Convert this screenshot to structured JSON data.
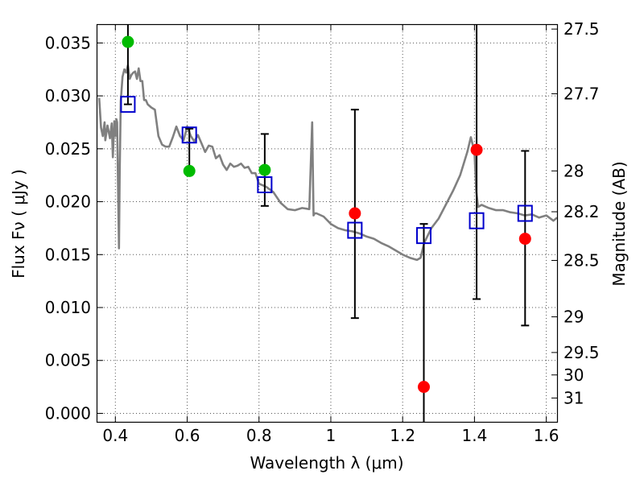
{
  "chart_data": {
    "type": "scatter",
    "xlabel": "Wavelength  λ (μm)",
    "ylabel": "Flux  Fν  ( μJy )",
    "ylabel_right": "Magnitude (AB)",
    "xlim": [
      0.35,
      1.63
    ],
    "ylim": [
      -0.0008,
      0.0367
    ],
    "grid": true,
    "x_ticks": [
      {
        "value": 0.4,
        "label": "0.4"
      },
      {
        "value": 0.6,
        "label": "0.6"
      },
      {
        "value": 0.8,
        "label": "0.8"
      },
      {
        "value": 1.0,
        "label": "1"
      },
      {
        "value": 1.2,
        "label": "1.2"
      },
      {
        "value": 1.4,
        "label": "1.4"
      },
      {
        "value": 1.6,
        "label": "1.6"
      }
    ],
    "y_ticks": [
      {
        "value": 0.0,
        "label": "0.000"
      },
      {
        "value": 0.005,
        "label": "0.005"
      },
      {
        "value": 0.01,
        "label": "0.010"
      },
      {
        "value": 0.015,
        "label": "0.015"
      },
      {
        "value": 0.02,
        "label": "0.020"
      },
      {
        "value": 0.025,
        "label": "0.025"
      },
      {
        "value": 0.03,
        "label": "0.030"
      },
      {
        "value": 0.035,
        "label": "0.035"
      }
    ],
    "right_ticks": [
      {
        "label": "27.5",
        "flux": 0.03631
      },
      {
        "label": "27.7",
        "flux": 0.0302
      },
      {
        "label": "28",
        "flux": 0.02291
      },
      {
        "label": "28.2",
        "flux": 0.01905
      },
      {
        "label": "28.5",
        "flux": 0.01445
      },
      {
        "label": "29",
        "flux": 0.00912
      },
      {
        "label": "29.5",
        "flux": 0.00575
      },
      {
        "label": "30",
        "flux": 0.00363
      },
      {
        "label": "31",
        "flux": 0.00145
      }
    ],
    "series": [
      {
        "kind": "model_sed_line",
        "color": "#808080",
        "x": [
          0.355,
          0.36,
          0.365,
          0.37,
          0.372,
          0.378,
          0.385,
          0.39,
          0.393,
          0.397,
          0.4,
          0.403,
          0.405,
          0.408,
          0.41,
          0.412,
          0.415,
          0.42,
          0.425,
          0.43,
          0.435,
          0.44,
          0.445,
          0.45,
          0.455,
          0.46,
          0.465,
          0.47,
          0.475,
          0.48,
          0.485,
          0.49,
          0.5,
          0.51,
          0.52,
          0.53,
          0.54,
          0.55,
          0.56,
          0.57,
          0.58,
          0.59,
          0.6,
          0.61,
          0.62,
          0.63,
          0.64,
          0.65,
          0.66,
          0.67,
          0.68,
          0.69,
          0.7,
          0.71,
          0.72,
          0.73,
          0.74,
          0.75,
          0.76,
          0.77,
          0.78,
          0.79,
          0.8,
          0.82,
          0.84,
          0.86,
          0.88,
          0.9,
          0.92,
          0.94,
          0.948,
          0.952,
          0.955,
          0.96,
          0.98,
          1.0,
          1.02,
          1.04,
          1.06,
          1.08,
          1.1,
          1.12,
          1.14,
          1.16,
          1.18,
          1.2,
          1.22,
          1.24,
          1.25,
          1.26,
          1.27,
          1.28,
          1.3,
          1.32,
          1.34,
          1.36,
          1.38,
          1.39,
          1.4,
          1.405,
          1.41,
          1.42,
          1.44,
          1.46,
          1.48,
          1.5,
          1.52,
          1.54,
          1.56,
          1.58,
          1.6,
          1.62,
          1.63
        ],
        "y": [
          0.0298,
          0.027,
          0.0262,
          0.0275,
          0.0258,
          0.0272,
          0.026,
          0.0274,
          0.0242,
          0.0276,
          0.0262,
          0.0278,
          0.0275,
          0.02,
          0.0156,
          0.0228,
          0.0295,
          0.0318,
          0.0325,
          0.0322,
          0.0329,
          0.0316,
          0.032,
          0.0322,
          0.0323,
          0.0316,
          0.0326,
          0.0314,
          0.0314,
          0.0296,
          0.0296,
          0.0292,
          0.0289,
          0.0287,
          0.0262,
          0.0254,
          0.0252,
          0.0252,
          0.0261,
          0.0271,
          0.0262,
          0.0258,
          0.0271,
          0.0262,
          0.0257,
          0.0263,
          0.0255,
          0.0247,
          0.0253,
          0.0252,
          0.0241,
          0.0244,
          0.0235,
          0.023,
          0.0236,
          0.0233,
          0.0234,
          0.0236,
          0.0232,
          0.0233,
          0.0227,
          0.0227,
          0.0217,
          0.0214,
          0.0209,
          0.0199,
          0.0193,
          0.0192,
          0.0194,
          0.0193,
          0.0275,
          0.0187,
          0.0189,
          0.0189,
          0.0186,
          0.0179,
          0.0175,
          0.0173,
          0.0172,
          0.017,
          0.0167,
          0.0165,
          0.0161,
          0.0158,
          0.0154,
          0.015,
          0.0147,
          0.0145,
          0.0147,
          0.0161,
          0.0168,
          0.0175,
          0.0184,
          0.0197,
          0.021,
          0.0225,
          0.0247,
          0.0261,
          0.0247,
          0.021,
          0.0195,
          0.0197,
          0.0194,
          0.0192,
          0.0192,
          0.019,
          0.0189,
          0.0187,
          0.0188,
          0.0185,
          0.0187,
          0.0182,
          0.0185
        ]
      },
      {
        "kind": "model_photometry",
        "marker": "open-square",
        "color": "#0000cc",
        "x": [
          0.435,
          0.606,
          0.816,
          1.067,
          1.259,
          1.406,
          1.541
        ],
        "y": [
          0.0292,
          0.0263,
          0.0216,
          0.0173,
          0.0168,
          0.0182,
          0.0189
        ]
      },
      {
        "kind": "observed_green",
        "marker": "filled-circle",
        "color": "#00bb00",
        "x": [
          0.435,
          0.606,
          0.816
        ],
        "y": [
          0.0351,
          0.0229,
          0.023
        ],
        "yerr_low": [
          0.0292,
          0.0229,
          0.0196
        ],
        "yerr_high": [
          0.0367,
          0.0269,
          0.0264
        ]
      },
      {
        "kind": "observed_red",
        "marker": "filled-circle",
        "color": "#ff0000",
        "x": [
          1.067,
          1.259,
          1.406,
          1.541
        ],
        "y": [
          0.0189,
          0.0025,
          0.0249,
          0.0165
        ],
        "yerr_low": [
          0.009,
          -0.0008,
          0.0108,
          0.0083
        ],
        "yerr_high": [
          0.0287,
          0.0179,
          0.0367,
          0.0248
        ]
      }
    ]
  }
}
